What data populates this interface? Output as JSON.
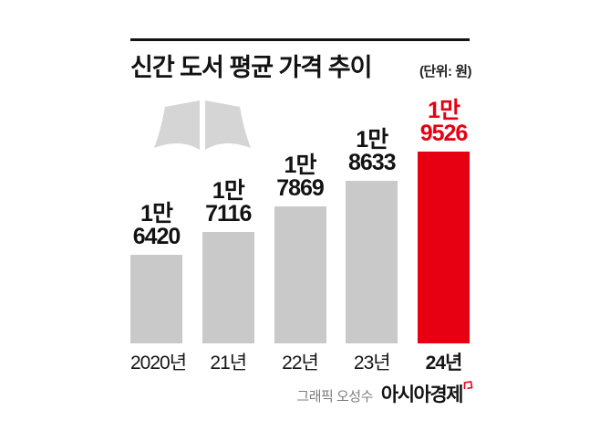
{
  "header": {
    "title": "신간 도서 평균 가격 추이",
    "unit_label": "(단위: 원)"
  },
  "chart_data": {
    "type": "bar",
    "title": "신간 도서 평균 가격 추이",
    "unit": "원",
    "categories": [
      "2020년",
      "21년",
      "22년",
      "23년",
      "24년"
    ],
    "values": [
      16420,
      17116,
      17869,
      18633,
      19526
    ],
    "value_labels": [
      [
        "1만",
        "6420"
      ],
      [
        "1만",
        "7116"
      ],
      [
        "1만",
        "7869"
      ],
      [
        "1만",
        "8633"
      ],
      [
        "1만",
        "9526"
      ]
    ],
    "highlight_index": 4,
    "legend": "none",
    "grid": false,
    "axis_baseline_visible": false,
    "colors": {
      "bar": "#c9c9c9",
      "highlight_bar": "#e60012",
      "value_label": "#121212",
      "highlight_value_label": "#e60012",
      "title": "#121212"
    }
  },
  "icons": {
    "book": "open-book-icon",
    "logo_mark": "red-flag-icon"
  },
  "footer": {
    "credit": "그래픽 오성수",
    "publisher": "아시아경제"
  }
}
